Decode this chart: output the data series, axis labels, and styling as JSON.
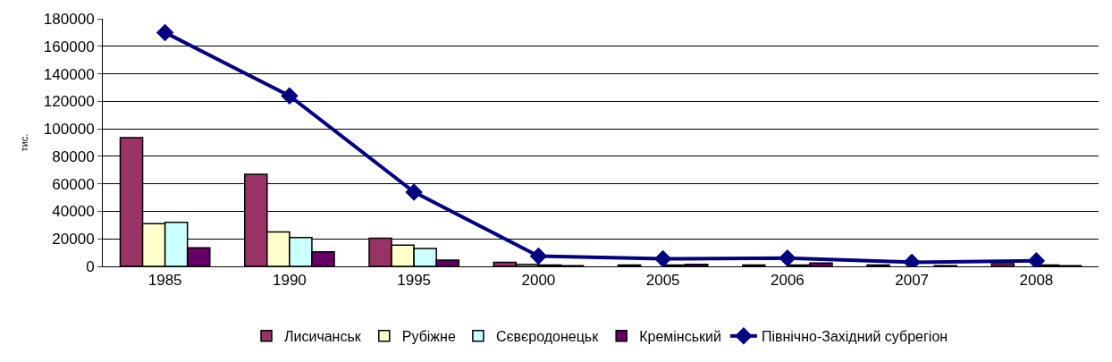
{
  "chart_data": {
    "type": "bar",
    "ylabel": "тис.",
    "categories": [
      "1985",
      "1990",
      "1995",
      "2000",
      "2005",
      "2006",
      "2007",
      "2008"
    ],
    "series": [
      {
        "name": "Лисичанськ",
        "color": "#993366",
        "values": [
          93500,
          67000,
          20500,
          3000,
          1000,
          1000,
          1000,
          2000
        ]
      },
      {
        "name": "Рубіжне",
        "color": "#ffffcc",
        "values": [
          31000,
          25000,
          15500,
          1500,
          null,
          null,
          null,
          null
        ]
      },
      {
        "name": "Сєвєродонецьк",
        "color": "#ccffff",
        "values": [
          32000,
          21000,
          13000,
          1000,
          1000,
          1000,
          null,
          1000
        ]
      },
      {
        "name": "Кремінський",
        "color": "#660066",
        "values": [
          13500,
          10500,
          4500,
          500,
          1500,
          2500,
          500,
          500
        ]
      },
      {
        "name": "Північно-Західний субрегіон",
        "color": "#000080",
        "type": "line",
        "marker": "diamond",
        "values": [
          170000,
          124000,
          54000,
          7500,
          5500,
          6000,
          3000,
          4000
        ]
      }
    ],
    "ylim": [
      0,
      180000
    ],
    "yticks": [
      0,
      20000,
      40000,
      60000,
      80000,
      100000,
      120000,
      140000,
      160000,
      180000
    ],
    "grid": "y",
    "legend": "bottom"
  }
}
